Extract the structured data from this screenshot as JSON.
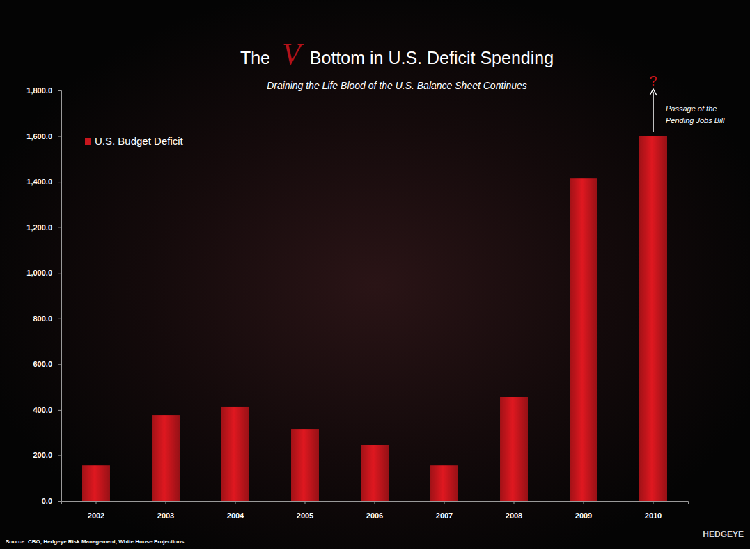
{
  "chart_data": {
    "type": "bar",
    "title": "The V Bottom in U.S. Deficit Spending",
    "subtitle": "Draining the Life Blood of the U.S. Balance Sheet Continues",
    "categories": [
      "2002",
      "2003",
      "2004",
      "2005",
      "2006",
      "2007",
      "2008",
      "2009",
      "2010"
    ],
    "series": [
      {
        "name": "U.S. Budget Deficit",
        "color": "#c8161d",
        "values": [
          158,
          375,
          412,
          314,
          247,
          158,
          455,
          1415,
          1600
        ]
      }
    ],
    "ylim": [
      0,
      1800
    ],
    "yticks": [
      {
        "value": 0,
        "label": "0.0"
      },
      {
        "value": 200,
        "label": "200.0"
      },
      {
        "value": 400,
        "label": "400.0"
      },
      {
        "value": 600,
        "label": "600.0"
      },
      {
        "value": 800,
        "label": "800.0"
      },
      {
        "value": 1000,
        "label": "1,000.0"
      },
      {
        "value": 1200,
        "label": "1,200.0"
      },
      {
        "value": 1400,
        "label": "1,400.0"
      },
      {
        "value": 1600,
        "label": "1,600.0"
      },
      {
        "value": 1800,
        "label": "1,800.0"
      }
    ],
    "grid": false,
    "legend": "top-left",
    "annotations": [
      "?",
      "Passage of the Pending Jobs Bill"
    ],
    "source": "Source: CBO, Hedgeye Risk Management, White House Projections",
    "logo": "HEDGEYE"
  }
}
